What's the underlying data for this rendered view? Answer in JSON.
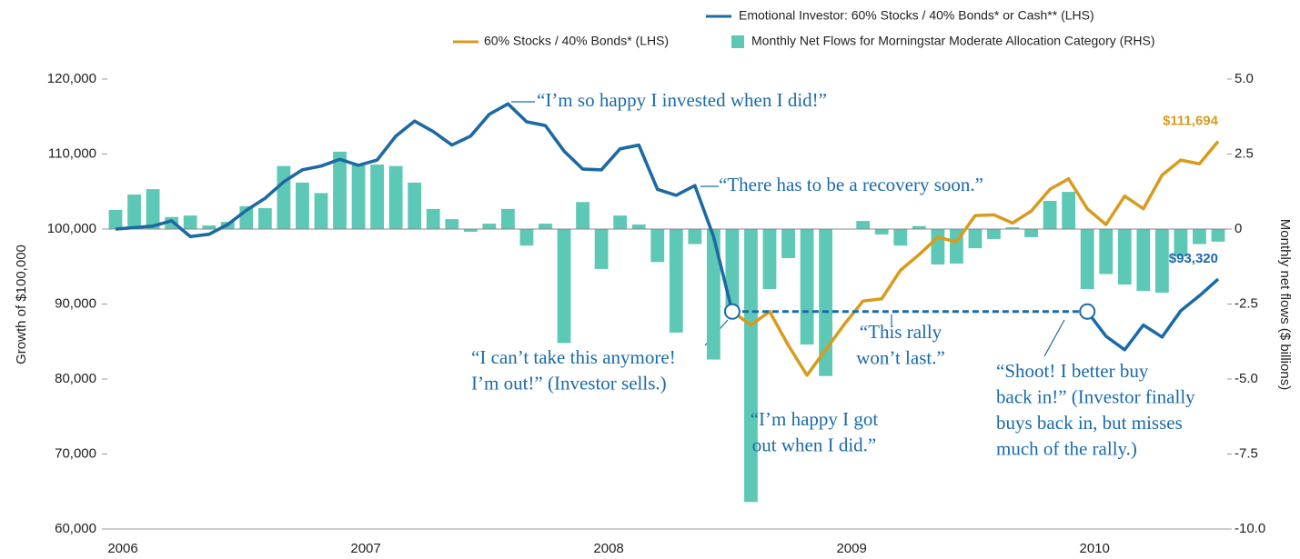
{
  "chart_data": {
    "type": "combo",
    "categories": [
      "2006",
      null,
      null,
      null,
      null,
      null,
      null,
      null,
      null,
      null,
      null,
      null,
      null,
      "2007",
      null,
      null,
      null,
      null,
      null,
      null,
      null,
      null,
      null,
      null,
      null,
      null,
      "2008",
      null,
      null,
      null,
      null,
      null,
      null,
      null,
      null,
      null,
      null,
      null,
      null,
      "2009",
      null,
      null,
      null,
      null,
      null,
      null,
      null,
      null,
      null,
      null,
      null,
      null,
      "2010",
      null,
      null,
      null,
      null,
      null,
      null,
      null
    ],
    "series": [
      {
        "name": "Emotional Investor: 60% Stocks / 40% Bonds* or Cash** (LHS)",
        "type": "line",
        "color": "#1a6aaa",
        "axis": "y",
        "values": [
          100000,
          100200,
          100400,
          101100,
          99000,
          99300,
          100600,
          102500,
          104100,
          106300,
          107900,
          108400,
          109300,
          108500,
          109200,
          112400,
          114400,
          113000,
          111200,
          112400,
          115300,
          116700,
          114300,
          113800,
          110400,
          108000,
          107900,
          110700,
          111200,
          105300,
          104500,
          105800,
          99000,
          89000,
          89000,
          89000,
          89000,
          89000,
          89000,
          89000,
          89000,
          89000,
          89000,
          89000,
          89000,
          89000,
          89000,
          89000,
          89000,
          89000,
          89000,
          89000,
          89000,
          85700,
          83900,
          87200,
          85600,
          89100,
          91100,
          93320
        ],
        "end_label": "$93,320"
      },
      {
        "name": "60% Stocks / 40% Bonds* (LHS)",
        "type": "line",
        "color": "#d89b1d",
        "axis": "y",
        "values": [
          100000,
          100200,
          100400,
          101100,
          99000,
          99300,
          100600,
          102500,
          104100,
          106300,
          107900,
          108400,
          109300,
          108500,
          109200,
          112400,
          114400,
          113000,
          111200,
          112400,
          115300,
          116700,
          114300,
          113800,
          110400,
          108000,
          107900,
          110700,
          111200,
          105300,
          104500,
          105800,
          99000,
          89000,
          87200,
          89000,
          84500,
          80500,
          83900,
          87300,
          90400,
          90700,
          94500,
          96600,
          98900,
          98300,
          101800,
          101900,
          100800,
          102400,
          105300,
          106700,
          102700,
          100600,
          104400,
          102700,
          107200,
          109200,
          108700,
          111694
        ],
        "end_label": "$111,694"
      },
      {
        "name": "Monthly Net Flows for Morningstar Moderate Allocation Category (RHS)",
        "type": "bar",
        "color": "#5cc8b5",
        "axis": "y2",
        "values": [
          0.64,
          1.15,
          1.33,
          0.4,
          0.45,
          0.12,
          0.24,
          0.76,
          0.7,
          2.1,
          1.55,
          1.2,
          2.58,
          2.18,
          2.15,
          2.1,
          1.55,
          0.67,
          0.33,
          -0.09,
          0.18,
          0.67,
          -0.55,
          0.18,
          -3.8,
          0.9,
          -1.33,
          0.45,
          0.15,
          -1.1,
          -3.45,
          -0.5,
          -4.35,
          -2.65,
          -9.1,
          -2.0,
          -0.97,
          -3.85,
          -4.9,
          0,
          0.27,
          -0.18,
          -0.55,
          0.1,
          -1.18,
          -1.15,
          -0.64,
          -0.33,
          0.06,
          -0.27,
          0.94,
          1.24,
          -2.0,
          -1.5,
          -1.85,
          -2.06,
          -2.12,
          -0.91,
          -0.5,
          -0.42
        ]
      }
    ],
    "ylabel": "Growth of $100,000",
    "y2label": "Monthly net flows ($ billions)",
    "ylim": [
      60000,
      120000
    ],
    "yticks": [
      {
        "value": 60000,
        "label": "60,000"
      },
      {
        "value": 70000,
        "label": "70,000"
      },
      {
        "value": 80000,
        "label": "80,000"
      },
      {
        "value": 90000,
        "label": "90,000"
      },
      {
        "value": 100000,
        "label": "100,000"
      },
      {
        "value": 110000,
        "label": "110,000"
      },
      {
        "value": 120000,
        "label": "120,000"
      }
    ],
    "y2lim": [
      -10,
      5
    ],
    "y2ticks": [
      {
        "value": -10,
        "label": "-10.0"
      },
      {
        "value": -7.5,
        "label": "-7.5"
      },
      {
        "value": -5,
        "label": "-5.0"
      },
      -2.5,
      0,
      2.5,
      {
        "value": 5,
        "label": "5.0"
      }
    ],
    "annotations": [
      {
        "lines": [
          "“I’m so happy I invested when I did!”"
        ]
      },
      {
        "lines": [
          "“There has to be a recovery soon.”"
        ]
      },
      {
        "lines": [
          "“I can’t take this anymore!",
          "I’m out!” (Investor sells.)"
        ]
      },
      {
        "lines": [
          "“This rally",
          "won’t last.”"
        ]
      },
      {
        "lines": [
          "“I’m happy I got",
          "out when I did.”"
        ]
      },
      {
        "lines": [
          "“Shoot! I better buy",
          "back in!” (Investor finally",
          "buys back in, but misses",
          "much of the rally.)"
        ]
      }
    ]
  }
}
